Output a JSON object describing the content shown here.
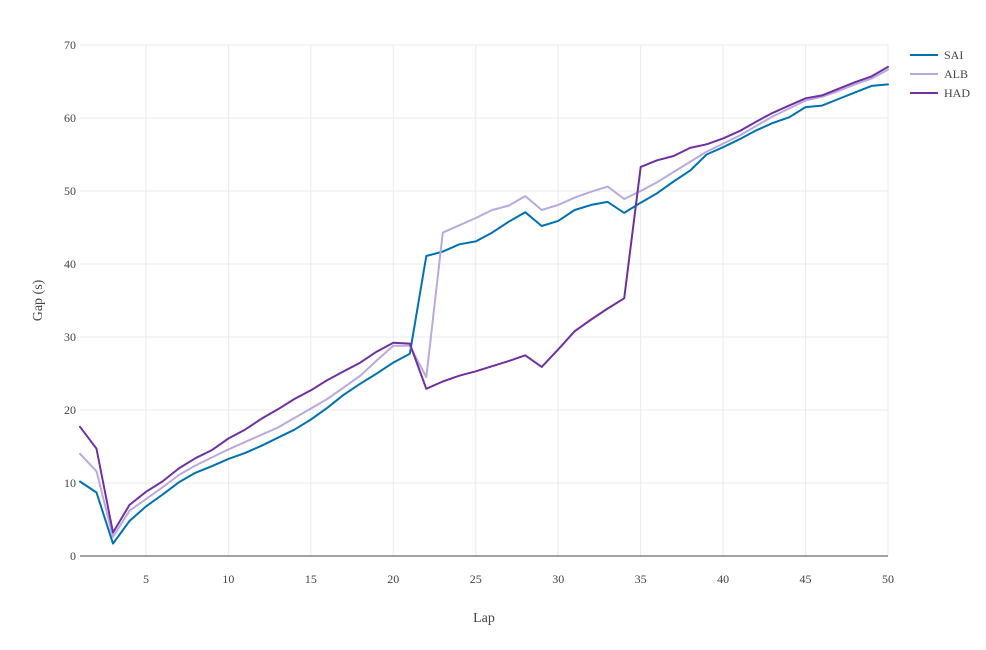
{
  "chart_data": {
    "type": "line",
    "title": "",
    "xlabel": "Lap",
    "ylabel": "Gap (s)",
    "xlim": [
      1,
      50
    ],
    "ylim": [
      0,
      70
    ],
    "xticks": [
      5,
      10,
      15,
      20,
      25,
      30,
      35,
      40,
      45,
      50
    ],
    "yticks": [
      0,
      10,
      20,
      30,
      40,
      50,
      60,
      70
    ],
    "grid": true,
    "legend_position": "top-right",
    "x": [
      1,
      2,
      3,
      4,
      5,
      6,
      7,
      8,
      9,
      10,
      11,
      12,
      13,
      14,
      15,
      16,
      17,
      18,
      19,
      20,
      21,
      22,
      23,
      24,
      25,
      26,
      27,
      28,
      29,
      30,
      31,
      32,
      33,
      34,
      35,
      36,
      37,
      38,
      39,
      40,
      41,
      42,
      43,
      44,
      45,
      46,
      47,
      48,
      49,
      50
    ],
    "series": [
      {
        "name": "SAI",
        "color": "#0072B2",
        "values": [
          10.2,
          8.7,
          1.7,
          4.8,
          6.8,
          8.4,
          10.1,
          11.4,
          12.3,
          13.3,
          14.1,
          15.1,
          16.2,
          17.3,
          18.7,
          20.3,
          22.1,
          23.6,
          25.0,
          26.5,
          27.7,
          41.1,
          41.7,
          42.7,
          43.1,
          44.3,
          45.8,
          47.1,
          45.2,
          45.9,
          47.4,
          48.1,
          48.5,
          47.0,
          48.4,
          49.7,
          51.3,
          52.8,
          55.0,
          56.0,
          57.1,
          58.3,
          59.3,
          60.1,
          61.5,
          61.7,
          62.6,
          63.5,
          64.4,
          64.6
        ]
      },
      {
        "name": "ALB",
        "color": "#B9A9E0",
        "values": [
          14.0,
          11.6,
          2.6,
          6.2,
          7.8,
          9.4,
          11.1,
          12.4,
          13.5,
          14.6,
          15.6,
          16.6,
          17.6,
          18.9,
          20.2,
          21.5,
          23.1,
          24.7,
          26.8,
          28.8,
          28.8,
          24.5,
          44.3,
          45.3,
          46.3,
          47.4,
          48.0,
          49.3,
          47.4,
          48.1,
          49.1,
          49.9,
          50.6,
          48.9,
          50.0,
          51.2,
          52.6,
          54.0,
          55.4,
          56.5,
          57.6,
          58.9,
          60.2,
          61.3,
          62.4,
          62.9,
          63.7,
          64.6,
          65.4,
          66.6
        ]
      },
      {
        "name": "HAD",
        "color": "#7030A0",
        "values": [
          17.7,
          14.7,
          3.2,
          7.0,
          8.8,
          10.2,
          12.0,
          13.4,
          14.5,
          16.1,
          17.3,
          18.8,
          20.1,
          21.5,
          22.7,
          24.1,
          25.3,
          26.5,
          28.0,
          29.2,
          29.1,
          22.9,
          23.9,
          24.7,
          25.3,
          26.0,
          26.7,
          27.5,
          25.9,
          28.3,
          30.8,
          32.4,
          33.9,
          35.3,
          53.3,
          54.2,
          54.8,
          55.9,
          56.4,
          57.2,
          58.2,
          59.5,
          60.7,
          61.7,
          62.7,
          63.1,
          64.0,
          64.9,
          65.7,
          67.0
        ]
      }
    ]
  }
}
